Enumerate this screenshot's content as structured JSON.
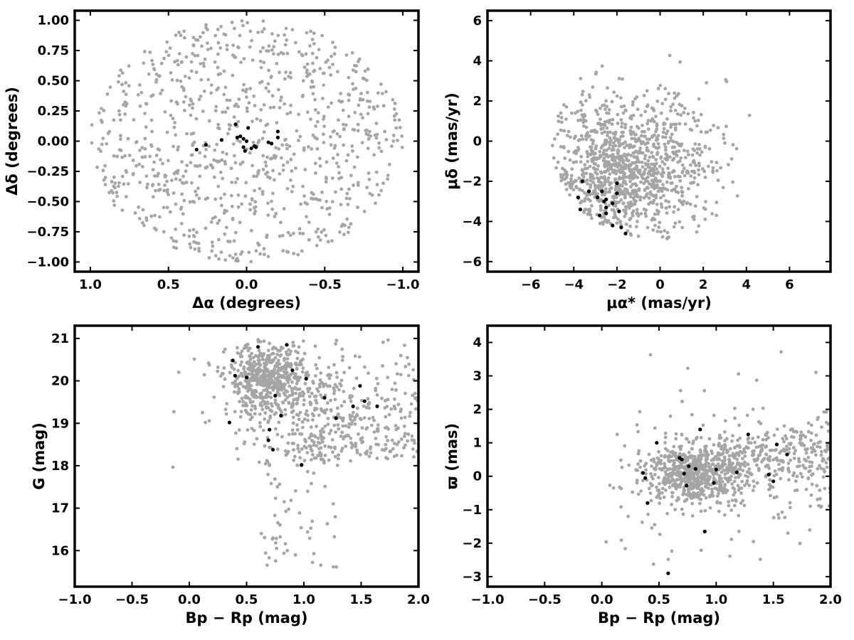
{
  "colors": {
    "field": "#a5a5a5",
    "member": "#000000",
    "frame": "#000000"
  },
  "chart_data": [
    {
      "type": "scatter",
      "title": "",
      "xlabel": "Δα (degrees)",
      "ylabel": "Δδ (degrees)",
      "xlim": [
        1.1,
        -1.1
      ],
      "ylim": [
        -1.08,
        1.08
      ],
      "xticks": [
        1.0,
        0.5,
        0.0,
        -0.5,
        -1.0
      ],
      "xtick_labels": [
        "1.0",
        "0.5",
        "0.0",
        "−0.5",
        "−1.0"
      ],
      "yticks": [
        1.0,
        0.75,
        0.5,
        0.25,
        0.0,
        -0.25,
        -0.5,
        -0.75,
        -1.0
      ],
      "ytick_labels": [
        "1.00",
        "0.75",
        "0.50",
        "0.25",
        "0.00",
        "−0.25",
        "−0.50",
        "−0.75",
        "−1.00"
      ],
      "grid": false,
      "series": [
        {
          "role": "field",
          "generated": {
            "count": 900,
            "distribution": "uniform_disk",
            "center": [
              0,
              0
            ],
            "radius": 1.0
          }
        },
        {
          "role": "member",
          "x": [
            0.32,
            0.26,
            0.16,
            0.06,
            0.07,
            0.04,
            0.02,
            0.01,
            0.02,
            0.0,
            -0.01,
            -0.03,
            -0.05,
            -0.06,
            -0.14,
            -0.16,
            -0.2,
            -0.2
          ],
          "y": [
            -0.07,
            -0.03,
            0.01,
            0.03,
            0.14,
            0.04,
            -0.05,
            -0.08,
            0.02,
            0.0,
            0.11,
            -0.06,
            -0.04,
            -0.05,
            -0.01,
            -0.02,
            0.03,
            0.08
          ]
        }
      ]
    },
    {
      "type": "scatter",
      "title": "",
      "xlabel": "μα* (mas/yr)",
      "ylabel": "μδ (mas/yr)",
      "xlim": [
        -8,
        7.9
      ],
      "ylim": [
        -6.5,
        6.5
      ],
      "xticks": [
        -6,
        -4,
        -2,
        0,
        2,
        4,
        6
      ],
      "xtick_labels": [
        "−6",
        "−4",
        "−2",
        "0",
        "2",
        "4",
        "6"
      ],
      "yticks": [
        6,
        4,
        2,
        0,
        -2,
        -4,
        -6
      ],
      "ytick_labels": [
        "6",
        "4",
        "2",
        "0",
        "−2",
        "−4",
        "−6"
      ],
      "grid": false,
      "series": [
        {
          "role": "field",
          "generated": {
            "count": 1000,
            "distribution": "gaussian_clipped_disk",
            "center": [
              -2.0,
              -1.6
            ],
            "sigma": [
              1.7,
              1.8
            ],
            "clip_center": [
              0,
              0
            ],
            "clip_radius": 5.0,
            "tail_count": 130,
            "tail_center": [
              1.2,
              -0.5
            ],
            "tail_sigma": [
              1.4,
              2.0
            ]
          }
        },
        {
          "role": "member",
          "x": [
            -3.8,
            -3.6,
            -3.7,
            -3.3,
            -2.9,
            -2.7,
            -2.6,
            -2.5,
            -2.5,
            -2.2,
            -2.0,
            -2.0,
            -1.9,
            -1.6,
            -2.8,
            -2.5,
            -1.8,
            -2.2
          ],
          "y": [
            -2.8,
            -2.0,
            -3.4,
            -2.5,
            -2.8,
            -2.5,
            -3.0,
            -3.3,
            -3.6,
            -4.2,
            -2.1,
            -2.6,
            -3.5,
            -4.6,
            -3.7,
            -2.9,
            -4.3,
            -3.1
          ]
        }
      ]
    },
    {
      "type": "scatter",
      "title": "",
      "xlabel": "Bp − Rp (mag)",
      "ylabel": "G (mag)",
      "xlim": [
        -1.0,
        2.0
      ],
      "ylim": [
        15.15,
        21.3
      ],
      "xticks": [
        -1.0,
        -0.5,
        0.0,
        0.5,
        1.0,
        1.5,
        2.0
      ],
      "xtick_labels": [
        "−1.0",
        "−0.5",
        "0.0",
        "0.5",
        "1.0",
        "1.5",
        "2.0"
      ],
      "yticks": [
        21,
        20,
        19,
        18,
        17,
        16
      ],
      "ytick_labels": [
        "21",
        "20",
        "19",
        "18",
        "17",
        "16"
      ],
      "grid": false,
      "series": [
        {
          "role": "field",
          "generated": {
            "count": 1050,
            "distribution": "cmd"
          }
        },
        {
          "role": "member",
          "x": [
            0.38,
            0.4,
            0.5,
            0.6,
            0.69,
            0.7,
            0.73,
            0.75,
            0.8,
            0.85,
            0.9,
            0.98,
            1.02,
            1.18,
            1.28,
            1.43,
            1.49,
            1.53,
            1.64,
            0.35
          ],
          "y": [
            20.48,
            20.12,
            20.08,
            20.8,
            18.6,
            18.85,
            18.38,
            19.65,
            19.18,
            20.85,
            20.25,
            18.02,
            20.05,
            19.6,
            19.12,
            19.4,
            19.88,
            19.52,
            19.4,
            19.02
          ]
        }
      ]
    },
    {
      "type": "scatter",
      "title": "",
      "xlabel": "Bp − Rp (mag)",
      "ylabel": "ϖ (mas)",
      "xlim": [
        -1.0,
        2.0
      ],
      "ylim": [
        -3.3,
        4.5
      ],
      "xticks": [
        -1.0,
        -0.5,
        0.0,
        0.5,
        1.0,
        1.5,
        2.0
      ],
      "xtick_labels": [
        "−1.0",
        "−0.5",
        "0.0",
        "0.5",
        "1.0",
        "1.5",
        "2.0"
      ],
      "yticks": [
        4,
        3,
        2,
        1,
        0,
        -1,
        -2,
        -3
      ],
      "ytick_labels": [
        "4",
        "3",
        "2",
        "1",
        "0",
        "−1",
        "−2",
        "−3"
      ],
      "grid": false,
      "series": [
        {
          "role": "field",
          "generated": {
            "count": 1050,
            "distribution": "parallax"
          }
        },
        {
          "role": "member",
          "x": [
            0.36,
            0.38,
            0.4,
            0.48,
            0.58,
            0.68,
            0.7,
            0.72,
            0.74,
            0.76,
            0.82,
            0.86,
            0.9,
            0.98,
            1.0,
            1.18,
            1.28,
            1.46,
            1.5,
            1.53,
            1.62
          ],
          "y": [
            0.1,
            -0.05,
            -0.8,
            1.0,
            -2.9,
            0.55,
            0.5,
            0.08,
            -0.28,
            0.3,
            0.22,
            1.4,
            -1.65,
            -0.2,
            0.2,
            0.12,
            1.25,
            0.05,
            -0.15,
            0.95,
            0.65
          ]
        }
      ]
    }
  ]
}
